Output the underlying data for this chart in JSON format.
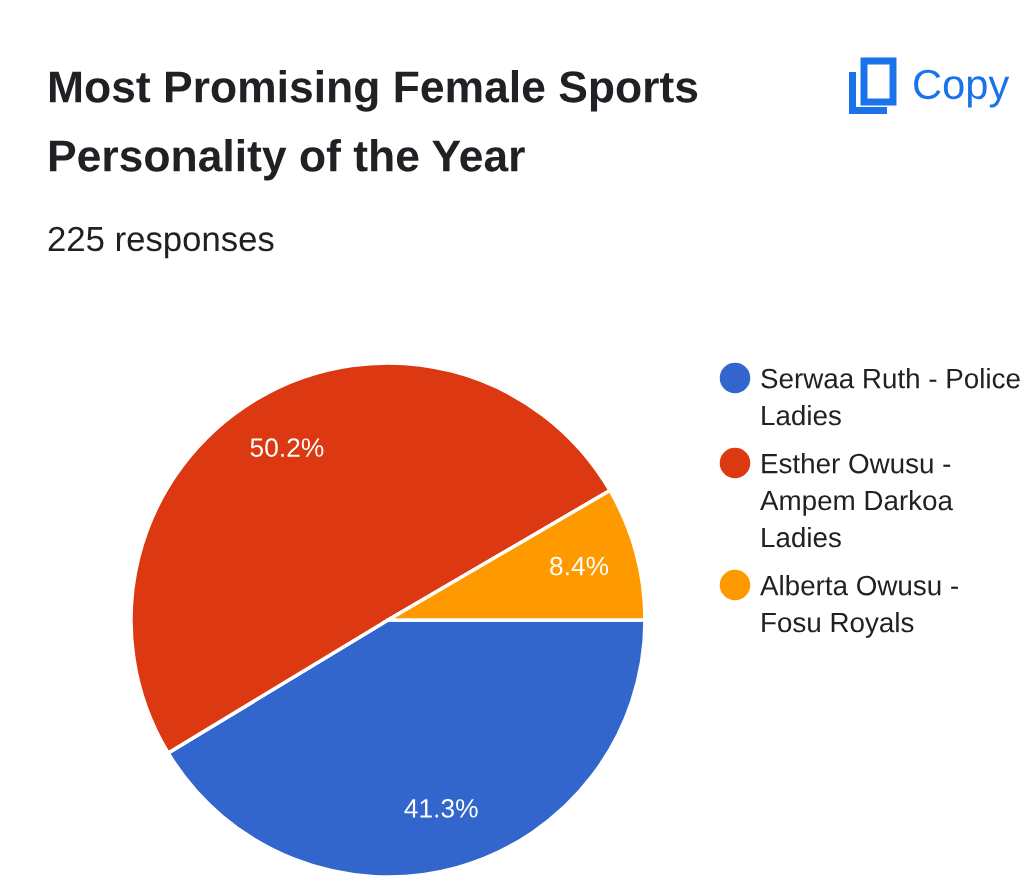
{
  "chart_data": {
    "type": "pie",
    "title": "Most Promising Female Sports Personality of the Year",
    "subtitle": "225 responses",
    "categories": [
      "Serwaa Ruth - Police Ladies",
      "Esther Owusu - Ampem Darkoa Ladies",
      "Alberta Owusu - Fosu Royals"
    ],
    "values": [
      41.3,
      50.2,
      8.4
    ],
    "colors": [
      "#3366cc",
      "#dc3912",
      "#ff9900"
    ],
    "value_labels": [
      "41.3%",
      "50.2%",
      "8.4%"
    ],
    "legend": "right",
    "annotations": [
      "Copy"
    ]
  }
}
